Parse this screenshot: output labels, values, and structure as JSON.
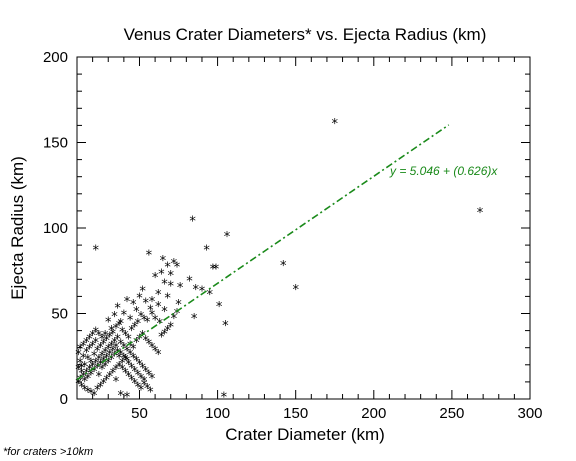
{
  "chart_data": {
    "type": "scatter",
    "title": "Venus Crater Diameters* vs. Ejecta Radius (km)",
    "xlabel": "Crater Diameter (km)",
    "ylabel": "Ejecta Radius (km)",
    "xlim": [
      10,
      300
    ],
    "ylim": [
      0,
      200
    ],
    "xticks": [
      "50",
      "100",
      "150",
      "200",
      "250",
      "300"
    ],
    "yticks": [
      "0",
      "50",
      "100",
      "150",
      "200"
    ],
    "grid": false,
    "marker": "asterisk",
    "fit": {
      "label": "y = 5.046 + (0.626)x",
      "intercept": 5.046,
      "slope": 0.626,
      "x_range": [
        10,
        248
      ],
      "color": "#1a8a1a",
      "style": "dash-dot"
    },
    "points": [
      [
        175,
        162
      ],
      [
        268,
        110
      ],
      [
        150,
        65
      ],
      [
        142,
        79
      ],
      [
        84,
        105
      ],
      [
        106,
        96
      ],
      [
        22,
        88
      ],
      [
        93,
        88
      ],
      [
        56,
        85
      ],
      [
        65,
        82
      ],
      [
        72,
        80
      ],
      [
        68,
        78
      ],
      [
        74,
        78
      ],
      [
        97,
        77
      ],
      [
        99,
        77
      ],
      [
        64,
        74
      ],
      [
        70,
        73
      ],
      [
        60,
        72
      ],
      [
        66,
        68
      ],
      [
        70,
        67
      ],
      [
        76,
        66
      ],
      [
        82,
        70
      ],
      [
        86,
        65
      ],
      [
        90,
        64
      ],
      [
        95,
        62
      ],
      [
        101,
        55
      ],
      [
        85,
        48
      ],
      [
        105,
        44
      ],
      [
        75,
        56
      ],
      [
        68,
        60
      ],
      [
        62,
        62
      ],
      [
        52,
        64
      ],
      [
        50,
        60
      ],
      [
        54,
        57
      ],
      [
        57,
        53
      ],
      [
        46,
        56
      ],
      [
        48,
        52
      ],
      [
        42,
        58
      ],
      [
        40,
        50
      ],
      [
        44,
        47
      ],
      [
        47,
        43
      ],
      [
        36,
        54
      ],
      [
        34,
        49
      ],
      [
        38,
        45
      ],
      [
        32,
        41
      ],
      [
        30,
        46
      ],
      [
        28,
        38
      ],
      [
        26,
        36
      ],
      [
        24,
        38
      ],
      [
        22,
        34
      ],
      [
        20,
        32
      ],
      [
        18,
        30
      ],
      [
        16,
        28
      ],
      [
        14,
        25
      ],
      [
        12,
        22
      ],
      [
        11,
        18
      ],
      [
        13,
        16
      ],
      [
        15,
        20
      ],
      [
        17,
        24
      ],
      [
        19,
        22
      ],
      [
        21,
        26
      ],
      [
        23,
        29
      ],
      [
        25,
        31
      ],
      [
        27,
        33
      ],
      [
        29,
        35
      ],
      [
        31,
        37
      ],
      [
        33,
        39
      ],
      [
        35,
        42
      ],
      [
        37,
        44
      ],
      [
        39,
        40
      ],
      [
        41,
        38
      ],
      [
        43,
        36
      ],
      [
        45,
        41
      ],
      [
        49,
        45
      ],
      [
        51,
        49
      ],
      [
        53,
        47
      ],
      [
        55,
        46
      ],
      [
        58,
        50
      ],
      [
        60,
        47
      ],
      [
        63,
        45
      ],
      [
        66,
        52
      ],
      [
        12,
        12
      ],
      [
        14,
        14
      ],
      [
        16,
        16
      ],
      [
        18,
        18
      ],
      [
        20,
        20
      ],
      [
        22,
        22
      ],
      [
        24,
        24
      ],
      [
        26,
        26
      ],
      [
        28,
        28
      ],
      [
        30,
        30
      ],
      [
        32,
        32
      ],
      [
        34,
        34
      ],
      [
        36,
        36
      ],
      [
        38,
        33
      ],
      [
        40,
        31
      ],
      [
        42,
        29
      ],
      [
        44,
        27
      ],
      [
        46,
        25
      ],
      [
        48,
        23
      ],
      [
        50,
        21
      ],
      [
        52,
        19
      ],
      [
        54,
        17
      ],
      [
        56,
        15
      ],
      [
        58,
        13
      ],
      [
        11,
        10
      ],
      [
        13,
        8
      ],
      [
        15,
        6
      ],
      [
        17,
        5
      ],
      [
        19,
        4
      ],
      [
        21,
        3
      ],
      [
        23,
        6
      ],
      [
        25,
        8
      ],
      [
        27,
        10
      ],
      [
        29,
        12
      ],
      [
        31,
        14
      ],
      [
        33,
        16
      ],
      [
        35,
        18
      ],
      [
        37,
        20
      ],
      [
        39,
        22
      ],
      [
        41,
        24
      ],
      [
        43,
        21
      ],
      [
        45,
        19
      ],
      [
        47,
        17
      ],
      [
        49,
        15
      ],
      [
        51,
        13
      ],
      [
        53,
        11
      ],
      [
        24,
        14
      ],
      [
        26,
        18
      ],
      [
        28,
        20
      ],
      [
        30,
        22
      ],
      [
        32,
        24
      ],
      [
        34,
        26
      ],
      [
        36,
        28
      ],
      [
        38,
        27
      ],
      [
        40,
        25
      ],
      [
        42,
        23
      ],
      [
        44,
        32
      ],
      [
        46,
        30
      ],
      [
        48,
        34
      ],
      [
        50,
        36
      ],
      [
        52,
        38
      ],
      [
        54,
        35
      ],
      [
        56,
        33
      ],
      [
        58,
        31
      ],
      [
        60,
        29
      ],
      [
        62,
        27
      ],
      [
        64,
        37
      ],
      [
        66,
        39
      ],
      [
        68,
        41
      ],
      [
        70,
        43
      ],
      [
        72,
        48
      ],
      [
        74,
        51
      ],
      [
        62,
        55
      ],
      [
        58,
        58
      ],
      [
        12,
        30
      ],
      [
        14,
        32
      ],
      [
        16,
        34
      ],
      [
        18,
        36
      ],
      [
        20,
        38
      ],
      [
        22,
        40
      ],
      [
        11,
        27
      ],
      [
        13,
        19
      ],
      [
        15,
        11
      ],
      [
        17,
        13
      ],
      [
        19,
        15
      ],
      [
        21,
        17
      ],
      [
        23,
        19
      ],
      [
        25,
        21
      ],
      [
        27,
        23
      ],
      [
        29,
        25
      ],
      [
        31,
        27
      ],
      [
        33,
        29
      ],
      [
        35,
        31
      ],
      [
        37,
        25
      ],
      [
        39,
        18
      ],
      [
        41,
        16
      ],
      [
        43,
        14
      ],
      [
        45,
        12
      ],
      [
        47,
        10
      ],
      [
        49,
        8
      ],
      [
        51,
        6
      ],
      [
        53,
        9
      ],
      [
        55,
        7
      ],
      [
        57,
        5
      ],
      [
        35,
        11
      ],
      [
        38,
        3
      ],
      [
        42,
        2
      ],
      [
        104,
        2
      ]
    ]
  },
  "footnote": "*for craters >10km"
}
